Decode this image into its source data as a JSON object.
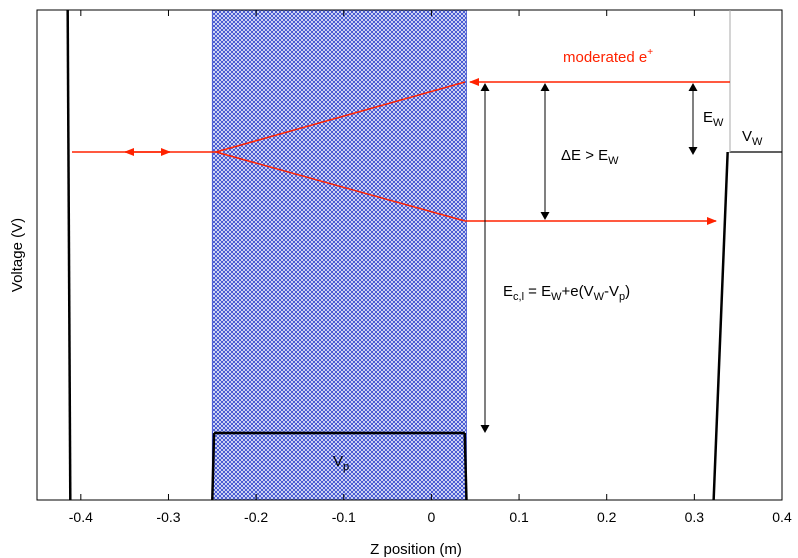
{
  "chart_data": {
    "type": "line",
    "title": "",
    "xlabel": "Z position (m)",
    "ylabel": "Voltage (V)",
    "xlim": [
      -0.45,
      0.4
    ],
    "xticks": [
      "-0.4",
      "-0.3",
      "-0.2",
      "-0.1",
      "0",
      "0.1",
      "0.2",
      "0.3",
      "0.4"
    ],
    "plug_region": {
      "z_start": -0.25,
      "z_end": 0.04,
      "fill_color": "#3b4fd0"
    },
    "potential_segments": [
      {
        "name": "left-wall",
        "z": [
          -0.415,
          -0.412
        ],
        "level": [
          "top",
          "bottom"
        ]
      },
      {
        "name": "plug-left-edge",
        "z": [
          -0.25,
          -0.248
        ],
        "level": [
          "bottom",
          "Vp"
        ]
      },
      {
        "name": "plug-top",
        "z": [
          -0.248,
          0.038
        ],
        "level": [
          "Vp",
          "Vp"
        ]
      },
      {
        "name": "plug-right-edge",
        "z": [
          0.038,
          0.04
        ],
        "level": [
          "Vp",
          "bottom"
        ]
      },
      {
        "name": "right-barrier-rise",
        "z": [
          0.322,
          0.338
        ],
        "level": [
          "bottom",
          "VW"
        ]
      },
      {
        "name": "right-barrier-top",
        "z": [
          0.34,
          0.4
        ],
        "level": [
          "VW",
          "VW"
        ]
      }
    ],
    "annotations": {
      "moderated": "moderated e",
      "moderated_sup": "+",
      "ew_main": "E",
      "ew_sub": "W",
      "vw_main": "V",
      "vw_sub": "W",
      "delta_main": "ΔE > E",
      "delta_sub": "W",
      "ec_main": "E",
      "ec_sub": "c,l",
      "ec_mid1": " = E",
      "ec_sub2": "W",
      "ec_mid2": "+e(V",
      "ec_sub3": "W",
      "ec_mid3": "-V",
      "ec_sub4": "p",
      "ec_end": ")",
      "vp_main": "V",
      "vp_sub": "p"
    },
    "colors": {
      "arrow": "#ff2200",
      "plug": "#3b4fd0",
      "axis": "#000000"
    }
  }
}
